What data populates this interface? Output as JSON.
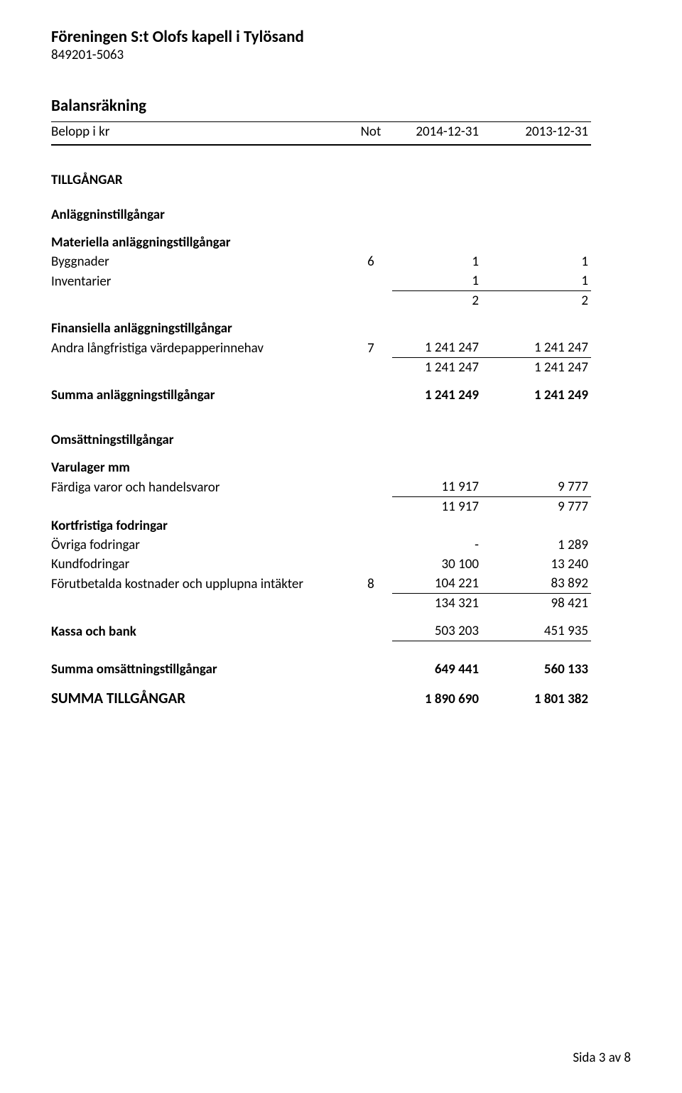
{
  "header": {
    "org_name": "Föreningen S:t Olofs kapell i Tylösand",
    "org_number": "849201-5063"
  },
  "report": {
    "title": "Balansräkning",
    "unit_label": "Belopp i kr",
    "not_label": "Not",
    "period1": "2014-12-31",
    "period2": "2013-12-31"
  },
  "s_tillgangar": "TILLGÅNGAR",
  "s_anlaggnin": "Anläggninstillgångar",
  "s_materiella": "Materiella anläggningstillgångar",
  "r_byggnader": {
    "label": "Byggnader",
    "not": "6",
    "v1": "1",
    "v2": "1"
  },
  "r_inventarier": {
    "label": "Inventarier",
    "not": "",
    "v1": "1",
    "v2": "1"
  },
  "r_mat_sum": {
    "v1": "2",
    "v2": "2"
  },
  "s_fin": "Finansiella anläggningstillgångar",
  "r_vardepapper": {
    "label": "Andra långfristiga värdepapperinnehav",
    "not": "7",
    "v1": "1 241 247",
    "v2": "1 241 247"
  },
  "r_fin_sum": {
    "v1": "1 241 247",
    "v2": "1 241 247"
  },
  "r_summa_anl": {
    "label": "Summa anläggningstillgångar",
    "v1": "1 241 249",
    "v2": "1 241 249"
  },
  "s_oms": "Omsättningstillgångar",
  "s_varulager": "Varulager mm",
  "r_fardiga": {
    "label": "Färdiga varor och handelsvaror",
    "v1": "11 917",
    "v2": "9 777"
  },
  "r_varu_sum": {
    "v1": "11 917",
    "v2": "9 777"
  },
  "s_kortfodr": "Kortfristiga fodringar",
  "r_ovriga": {
    "label": "Övriga fodringar",
    "v1": "-",
    "v2": "1 289"
  },
  "r_kund": {
    "label": "Kundfodringar",
    "v1": "30 100",
    "v2": "13 240"
  },
  "r_forut": {
    "label": "Förutbetalda kostnader och upplupna intäkter",
    "not": "8",
    "v1": "104 221",
    "v2": "83 892"
  },
  "r_kf_sum": {
    "v1": "134 321",
    "v2": "98 421"
  },
  "r_kassa": {
    "label": "Kassa och bank",
    "v1": "503 203",
    "v2": "451 935"
  },
  "r_summa_oms": {
    "label": "Summa omsättningstillgångar",
    "v1": "649 441",
    "v2": "560 133"
  },
  "r_summa_till": {
    "label": "SUMMA TILLGÅNGAR",
    "v1": "1 890 690",
    "v2": "1 801 382"
  },
  "footer": {
    "page": "Sida 3 av 8"
  }
}
